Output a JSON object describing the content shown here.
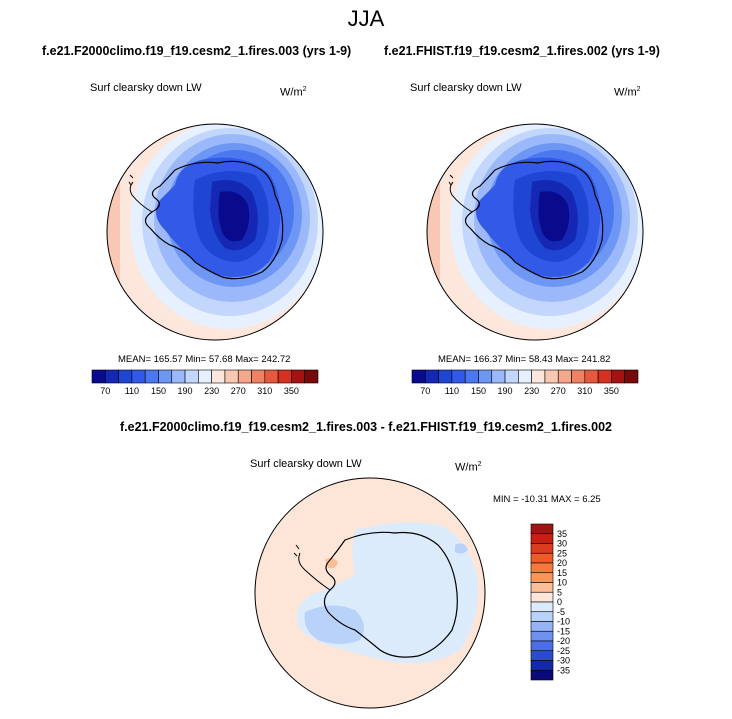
{
  "title": "JJA",
  "panels": [
    {
      "case": "f.e21.F2000climo.f19_f19.cesm2_1.fires.003 (yrs 1-9)",
      "variable": "Surf clearsky down LW",
      "units": "W/m",
      "units_exp": "2",
      "stats": "MEAN= 165.57  Min= 57.68  Max= 242.72"
    },
    {
      "case": "f.e21.FHIST.f19_f19.cesm2_1.fires.002 (yrs 1-9)",
      "variable": "Surf clearsky down LW",
      "units": "W/m",
      "units_exp": "2",
      "stats": "MEAN= 166.37  Min= 58.43  Max= 241.82"
    }
  ],
  "difference": {
    "title": "f.e21.F2000climo.f19_f19.cesm2_1.fires.003 - f.e21.FHIST.f19_f19.cesm2_1.fires.002",
    "variable": "Surf clearsky down LW",
    "units": "W/m",
    "units_exp": "2",
    "stats": "MIN = -10.31 MAX =   6.25"
  },
  "chart_data": [
    {
      "type": "heatmap",
      "projection": "south-polar-stereographic",
      "variable": "Surf clearsky down LW",
      "mean": 165.57,
      "min": 57.68,
      "max": 242.72,
      "colorbar": {
        "orientation": "horizontal",
        "tick_labels": [
          "70",
          "110",
          "150",
          "190",
          "230",
          "270",
          "310",
          "350"
        ],
        "colors": [
          "#0a0a8c",
          "#1428b4",
          "#1e46d2",
          "#325ae6",
          "#4b78f0",
          "#6e96f5",
          "#9bb9fa",
          "#c3d7fc",
          "#e6f0ff",
          "#fde6dc",
          "#f8c8b4",
          "#f5a78a",
          "#f08264",
          "#e65a3c",
          "#d2321e",
          "#a01414",
          "#780a0a"
        ]
      }
    },
    {
      "type": "heatmap",
      "projection": "south-polar-stereographic",
      "variable": "Surf clearsky down LW",
      "mean": 166.37,
      "min": 58.43,
      "max": 241.82,
      "colorbar": {
        "orientation": "horizontal",
        "tick_labels": [
          "70",
          "110",
          "150",
          "190",
          "230",
          "270",
          "310",
          "350"
        ],
        "colors": [
          "#0a0a8c",
          "#1428b4",
          "#1e46d2",
          "#325ae6",
          "#4b78f0",
          "#6e96f5",
          "#9bb9fa",
          "#c3d7fc",
          "#e6f0ff",
          "#fde6dc",
          "#f8c8b4",
          "#f5a78a",
          "#f08264",
          "#e65a3c",
          "#d2321e",
          "#a01414",
          "#780a0a"
        ]
      }
    },
    {
      "type": "heatmap",
      "projection": "south-polar-stereographic",
      "variable": "Surf clearsky down LW",
      "min": -10.31,
      "max": 6.25,
      "colorbar": {
        "orientation": "vertical",
        "tick_labels": [
          "35",
          "30",
          "25",
          "20",
          "15",
          "10",
          "5",
          "0",
          "-5",
          "-10",
          "-15",
          "-20",
          "-25",
          "-30",
          "-35"
        ],
        "colors": [
          "#a01414",
          "#c81e14",
          "#dc3c1e",
          "#f05a28",
          "#f5783c",
          "#fa965a",
          "#fcbe96",
          "#fde6d8",
          "#dcebfc",
          "#b9d2fa",
          "#96b4f5",
          "#6e91f0",
          "#4b6ee6",
          "#2d4bd2",
          "#1428aa",
          "#0a0a78"
        ]
      }
    }
  ]
}
